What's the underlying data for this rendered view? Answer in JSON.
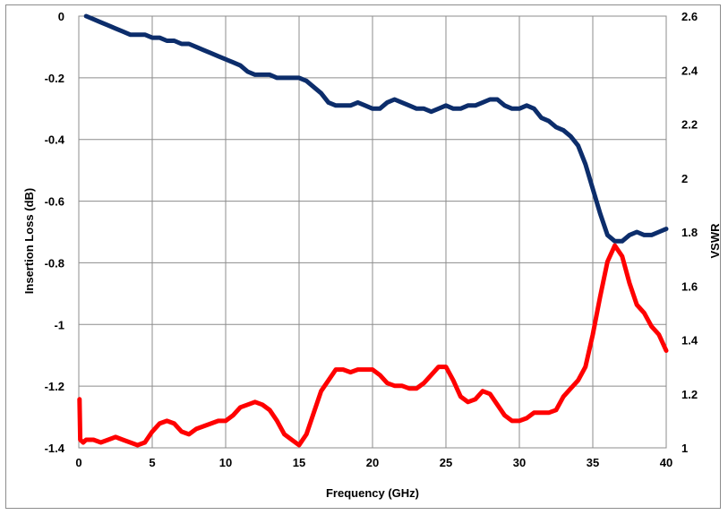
{
  "chart_data": {
    "type": "line",
    "title": "",
    "xlabel": "Frequency (GHz)",
    "ylabel": "Insertion Loss (dB)",
    "y2label": "VSWR",
    "xlim": [
      0,
      40
    ],
    "ylim": [
      -1.4,
      0
    ],
    "y2lim": [
      1,
      2.6
    ],
    "grid": true,
    "legend": "none",
    "x_ticks": [
      "0",
      "5",
      "10",
      "15",
      "20",
      "25",
      "30",
      "35",
      "40"
    ],
    "y_ticks": [
      "0",
      "-0.2",
      "-0.4",
      "-0.6",
      "-0.8",
      "-1",
      "-1.2",
      "-1.4"
    ],
    "y2_ticks": [
      "2.6",
      "2.4",
      "2.2",
      "2",
      "1.8",
      "1.6",
      "1.4",
      "1.2",
      "1"
    ],
    "series": [
      {
        "axis": "left",
        "color": "#0c2d6b",
        "x": [
          0.5,
          1.0,
          1.5,
          2.0,
          2.5,
          3.0,
          3.5,
          4.0,
          4.5,
          5.0,
          5.5,
          6.0,
          6.5,
          7.0,
          7.5,
          8.0,
          8.5,
          9.0,
          9.5,
          10.0,
          10.5,
          11.0,
          11.5,
          12.0,
          12.5,
          13.0,
          13.5,
          14.0,
          14.5,
          15.0,
          15.5,
          16.0,
          16.5,
          17.0,
          17.5,
          18.0,
          18.5,
          19.0,
          19.5,
          20.0,
          20.5,
          21.0,
          21.5,
          22.0,
          22.5,
          23.0,
          23.5,
          24.0,
          24.5,
          25.0,
          25.5,
          26.0,
          26.5,
          27.0,
          27.5,
          28.0,
          28.5,
          29.0,
          29.5,
          30.0,
          30.5,
          31.0,
          31.5,
          32.0,
          32.5,
          33.0,
          33.5,
          34.0,
          34.5,
          35.0,
          35.5,
          36.0,
          36.5,
          37.0,
          37.5,
          38.0,
          38.5,
          39.0,
          39.5,
          40.0
        ],
        "values": [
          0.0,
          -0.01,
          -0.02,
          -0.03,
          -0.04,
          -0.05,
          -0.06,
          -0.06,
          -0.06,
          -0.07,
          -0.07,
          -0.08,
          -0.08,
          -0.09,
          -0.09,
          -0.1,
          -0.11,
          -0.12,
          -0.13,
          -0.14,
          -0.15,
          -0.16,
          -0.18,
          -0.19,
          -0.19,
          -0.19,
          -0.2,
          -0.2,
          -0.2,
          -0.2,
          -0.21,
          -0.23,
          -0.25,
          -0.28,
          -0.29,
          -0.29,
          -0.29,
          -0.28,
          -0.29,
          -0.3,
          -0.3,
          -0.28,
          -0.27,
          -0.28,
          -0.29,
          -0.3,
          -0.3,
          -0.31,
          -0.3,
          -0.29,
          -0.3,
          -0.3,
          -0.29,
          -0.29,
          -0.28,
          -0.27,
          -0.27,
          -0.29,
          -0.3,
          -0.3,
          -0.29,
          -0.3,
          -0.33,
          -0.34,
          -0.36,
          -0.37,
          -0.39,
          -0.42,
          -0.48,
          -0.56,
          -0.64,
          -0.71,
          -0.73,
          -0.73,
          -0.71,
          -0.7,
          -0.71,
          -0.71,
          -0.7,
          -0.69
        ]
      },
      {
        "axis": "right",
        "color": "#ff0000",
        "x": [
          0.05,
          0.1,
          0.3,
          0.5,
          1.0,
          1.5,
          2.0,
          2.5,
          3.0,
          3.5,
          4.0,
          4.5,
          5.0,
          5.5,
          6.0,
          6.5,
          7.0,
          7.5,
          8.0,
          8.5,
          9.0,
          9.5,
          10.0,
          10.5,
          11.0,
          11.5,
          12.0,
          12.5,
          13.0,
          13.5,
          14.0,
          14.5,
          15.0,
          15.5,
          16.0,
          16.5,
          17.0,
          17.5,
          18.0,
          18.5,
          19.0,
          19.5,
          20.0,
          20.5,
          21.0,
          21.5,
          22.0,
          22.5,
          23.0,
          23.5,
          24.0,
          24.5,
          25.0,
          25.5,
          26.0,
          26.5,
          27.0,
          27.5,
          28.0,
          28.5,
          29.0,
          29.5,
          30.0,
          30.5,
          31.0,
          31.5,
          32.0,
          32.5,
          33.0,
          33.5,
          34.0,
          34.5,
          35.0,
          35.5,
          36.0,
          36.5,
          37.0,
          37.5,
          38.0,
          38.5,
          39.0,
          39.5,
          40.0
        ],
        "values": [
          1.18,
          1.03,
          1.02,
          1.03,
          1.03,
          1.02,
          1.03,
          1.04,
          1.03,
          1.02,
          1.01,
          1.02,
          1.06,
          1.09,
          1.1,
          1.09,
          1.06,
          1.05,
          1.07,
          1.08,
          1.09,
          1.1,
          1.1,
          1.12,
          1.15,
          1.16,
          1.17,
          1.16,
          1.14,
          1.1,
          1.05,
          1.03,
          1.01,
          1.05,
          1.13,
          1.21,
          1.25,
          1.29,
          1.29,
          1.28,
          1.29,
          1.29,
          1.29,
          1.27,
          1.24,
          1.23,
          1.23,
          1.22,
          1.22,
          1.24,
          1.27,
          1.3,
          1.3,
          1.25,
          1.19,
          1.17,
          1.18,
          1.21,
          1.2,
          1.16,
          1.12,
          1.1,
          1.1,
          1.11,
          1.13,
          1.13,
          1.13,
          1.14,
          1.19,
          1.22,
          1.25,
          1.3,
          1.42,
          1.56,
          1.69,
          1.75,
          1.71,
          1.61,
          1.53,
          1.5,
          1.45,
          1.42,
          1.36
        ]
      }
    ]
  }
}
